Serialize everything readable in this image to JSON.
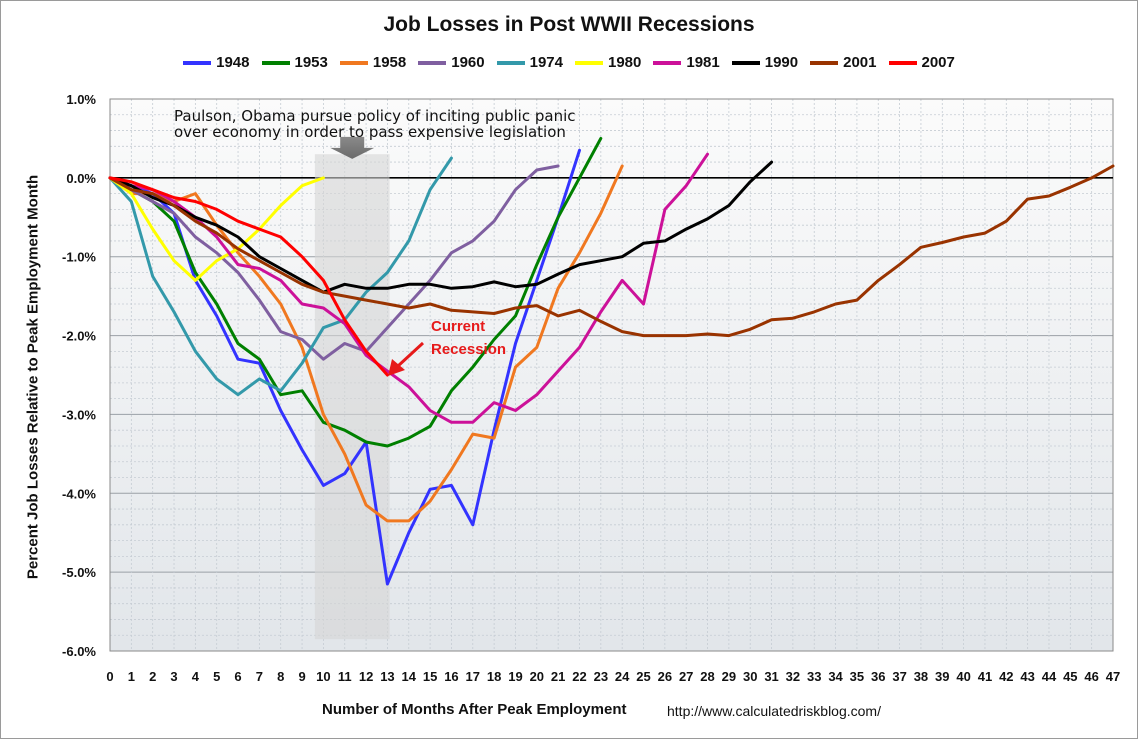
{
  "chart_data": {
    "type": "line",
    "title": "Job Losses in Post WWII Recessions",
    "xlabel": "Number of Months After Peak Employment",
    "ylabel": "Percent Job Losses Relative to Peak Employment Month",
    "source": "http://www.calculatedriskblog.com/",
    "xlim": [
      0,
      47
    ],
    "ylim": [
      -6.0,
      1.0
    ],
    "x_ticks": [
      "0",
      "1",
      "2",
      "3",
      "4",
      "5",
      "6",
      "7",
      "8",
      "9",
      "10",
      "11",
      "12",
      "13",
      "14",
      "15",
      "16",
      "17",
      "18",
      "19",
      "20",
      "21",
      "22",
      "23",
      "24",
      "25",
      "26",
      "27",
      "28",
      "29",
      "30",
      "31",
      "32",
      "33",
      "34",
      "35",
      "36",
      "37",
      "38",
      "39",
      "40",
      "41",
      "42",
      "43",
      "44",
      "45",
      "46",
      "47"
    ],
    "y_ticks": [
      {
        "value": 1.0,
        "label": "1.0%"
      },
      {
        "value": 0.0,
        "label": "0.0%"
      },
      {
        "value": -1.0,
        "label": "-1.0%"
      },
      {
        "value": -2.0,
        "label": "-2.0%"
      },
      {
        "value": -3.0,
        "label": "-3.0%"
      },
      {
        "value": -4.0,
        "label": "-4.0%"
      },
      {
        "value": -5.0,
        "label": "-5.0%"
      },
      {
        "value": -6.0,
        "label": "-6.0%"
      }
    ],
    "grid": true,
    "legend_position": "top",
    "series": [
      {
        "name": "1948",
        "color": "#3333ff",
        "values": [
          0,
          -0.1,
          -0.2,
          -0.45,
          -1.3,
          -1.75,
          -2.3,
          -2.35,
          -2.95,
          -3.45,
          -3.9,
          -3.75,
          -3.35,
          -5.15,
          -4.5,
          -3.95,
          -3.9,
          -4.4,
          -3.2,
          -2.1,
          -1.3,
          -0.5,
          0.35
        ]
      },
      {
        "name": "1953",
        "color": "#008000",
        "values": [
          0,
          -0.15,
          -0.3,
          -0.55,
          -1.2,
          -1.6,
          -2.1,
          -2.3,
          -2.75,
          -2.7,
          -3.1,
          -3.2,
          -3.35,
          -3.4,
          -3.3,
          -3.15,
          -2.7,
          -2.4,
          -2.05,
          -1.75,
          -1.1,
          -0.5,
          0.0,
          0.5
        ]
      },
      {
        "name": "1958",
        "color": "#f07820",
        "values": [
          0,
          -0.2,
          -0.2,
          -0.3,
          -0.2,
          -0.6,
          -0.95,
          -1.25,
          -1.6,
          -2.15,
          -3.0,
          -3.5,
          -4.15,
          -4.35,
          -4.35,
          -4.1,
          -3.7,
          -3.25,
          -3.3,
          -2.4,
          -2.15,
          -1.4,
          -0.95,
          -0.45,
          0.15
        ]
      },
      {
        "name": "1960",
        "color": "#7f5fa0",
        "values": [
          0,
          -0.15,
          -0.3,
          -0.45,
          -0.75,
          -0.95,
          -1.2,
          -1.55,
          -1.95,
          -2.05,
          -2.3,
          -2.1,
          -2.2,
          -1.9,
          -1.6,
          -1.3,
          -0.95,
          -0.8,
          -0.55,
          -0.15,
          0.1,
          0.15
        ]
      },
      {
        "name": "1974",
        "color": "#3399aa",
        "values": [
          0,
          -0.3,
          -1.25,
          -1.7,
          -2.2,
          -2.55,
          -2.75,
          -2.55,
          -2.7,
          -2.35,
          -1.9,
          -1.8,
          -1.45,
          -1.2,
          -0.8,
          -0.15,
          0.25
        ]
      },
      {
        "name": "1980",
        "color": "#ffff00",
        "values": [
          0,
          -0.2,
          -0.65,
          -1.05,
          -1.3,
          -1.05,
          -0.9,
          -0.65,
          -0.35,
          -0.1,
          0.0
        ]
      },
      {
        "name": "1981",
        "color": "#cc1199",
        "values": [
          0,
          -0.1,
          -0.15,
          -0.3,
          -0.5,
          -0.75,
          -1.1,
          -1.15,
          -1.3,
          -1.6,
          -1.65,
          -1.85,
          -2.25,
          -2.45,
          -2.65,
          -2.95,
          -3.1,
          -3.1,
          -2.85,
          -2.95,
          -2.75,
          -2.45,
          -2.15,
          -1.7,
          -1.3,
          -1.6,
          -0.4,
          -0.1,
          0.3
        ]
      },
      {
        "name": "1990",
        "color": "#000000",
        "values": [
          0,
          -0.1,
          -0.25,
          -0.35,
          -0.5,
          -0.6,
          -0.75,
          -1.0,
          -1.15,
          -1.3,
          -1.45,
          -1.35,
          -1.4,
          -1.4,
          -1.35,
          -1.35,
          -1.4,
          -1.38,
          -1.32,
          -1.38,
          -1.35,
          -1.22,
          -1.1,
          -1.05,
          -1.0,
          -0.83,
          -0.8,
          -0.65,
          -0.52,
          -0.35,
          -0.05,
          0.2
        ]
      },
      {
        "name": "2001",
        "color": "#993300",
        "values": [
          0,
          -0.15,
          -0.2,
          -0.35,
          -0.55,
          -0.7,
          -0.9,
          -1.05,
          -1.2,
          -1.35,
          -1.45,
          -1.5,
          -1.55,
          -1.6,
          -1.65,
          -1.6,
          -1.68,
          -1.7,
          -1.72,
          -1.65,
          -1.62,
          -1.75,
          -1.68,
          -1.82,
          -1.95,
          -2.0,
          -2.0,
          -2.0,
          -1.98,
          -2.0,
          -1.92,
          -1.8,
          -1.78,
          -1.7,
          -1.6,
          -1.55,
          -1.3,
          -1.1,
          -0.88,
          -0.82,
          -0.75,
          -0.7,
          -0.55,
          -0.27,
          -0.23,
          -0.12,
          0.0,
          0.15
        ]
      },
      {
        "name": "2007",
        "color": "#ff0000",
        "values": [
          0,
          -0.05,
          -0.15,
          -0.25,
          -0.3,
          -0.4,
          -0.55,
          -0.65,
          -0.75,
          -1.0,
          -1.3,
          -1.8,
          -2.2,
          -2.5
        ]
      }
    ],
    "annotations": [
      {
        "text_lines": [
          "Paulson, Obama pursue policy of inciting public panic",
          "over economy in order to pass expensive legislation"
        ]
      },
      {
        "text_lines": [
          "Current",
          "Recession"
        ],
        "color": "#e61a1a"
      }
    ]
  }
}
